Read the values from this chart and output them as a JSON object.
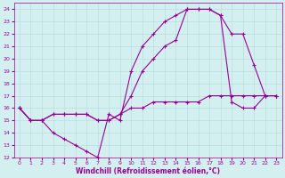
{
  "xlabel": "Windchill (Refroidissement éolien,°C)",
  "xlim": [
    -0.5,
    23.5
  ],
  "ylim": [
    12,
    24.5
  ],
  "xticks": [
    0,
    1,
    2,
    3,
    4,
    5,
    6,
    7,
    8,
    9,
    10,
    11,
    12,
    13,
    14,
    15,
    16,
    17,
    18,
    19,
    20,
    21,
    22,
    23
  ],
  "yticks": [
    12,
    13,
    14,
    15,
    16,
    17,
    18,
    19,
    20,
    21,
    22,
    23,
    24
  ],
  "bg_color": "#d4efef",
  "grid_color": "#b8dede",
  "line_color": "#990099",
  "line1_x": [
    0,
    1,
    2,
    3,
    4,
    5,
    6,
    7,
    8,
    9,
    10,
    11,
    12,
    13,
    14,
    15,
    16,
    17,
    18,
    19,
    20,
    21,
    22,
    23
  ],
  "line1_y": [
    16,
    15,
    15,
    14,
    13.5,
    13,
    12.5,
    12,
    15.5,
    15,
    19,
    21,
    22,
    23,
    23.5,
    24,
    24,
    24,
    23.5,
    22,
    22,
    19.5,
    17,
    17
  ],
  "line2_x": [
    0,
    1,
    2,
    3,
    4,
    5,
    6,
    7,
    8,
    9,
    10,
    11,
    12,
    13,
    14,
    15,
    16,
    17,
    18,
    19,
    20,
    21,
    22,
    23
  ],
  "line2_y": [
    16,
    15,
    15,
    15.5,
    15.5,
    15.5,
    15.5,
    15,
    15,
    15.5,
    17,
    19,
    20,
    21,
    21.5,
    24,
    24,
    24,
    23.5,
    16.5,
    16,
    16,
    17,
    17
  ],
  "line3_x": [
    0,
    1,
    2,
    3,
    4,
    5,
    6,
    7,
    8,
    9,
    10,
    11,
    12,
    13,
    14,
    15,
    16,
    17,
    18,
    19,
    20,
    21,
    22,
    23
  ],
  "line3_y": [
    16,
    15,
    15,
    15.5,
    15.5,
    15.5,
    15.5,
    15,
    15,
    15.5,
    16,
    16,
    16.5,
    16.5,
    16.5,
    16.5,
    16.5,
    17,
    17,
    17,
    17,
    17,
    17,
    17
  ]
}
